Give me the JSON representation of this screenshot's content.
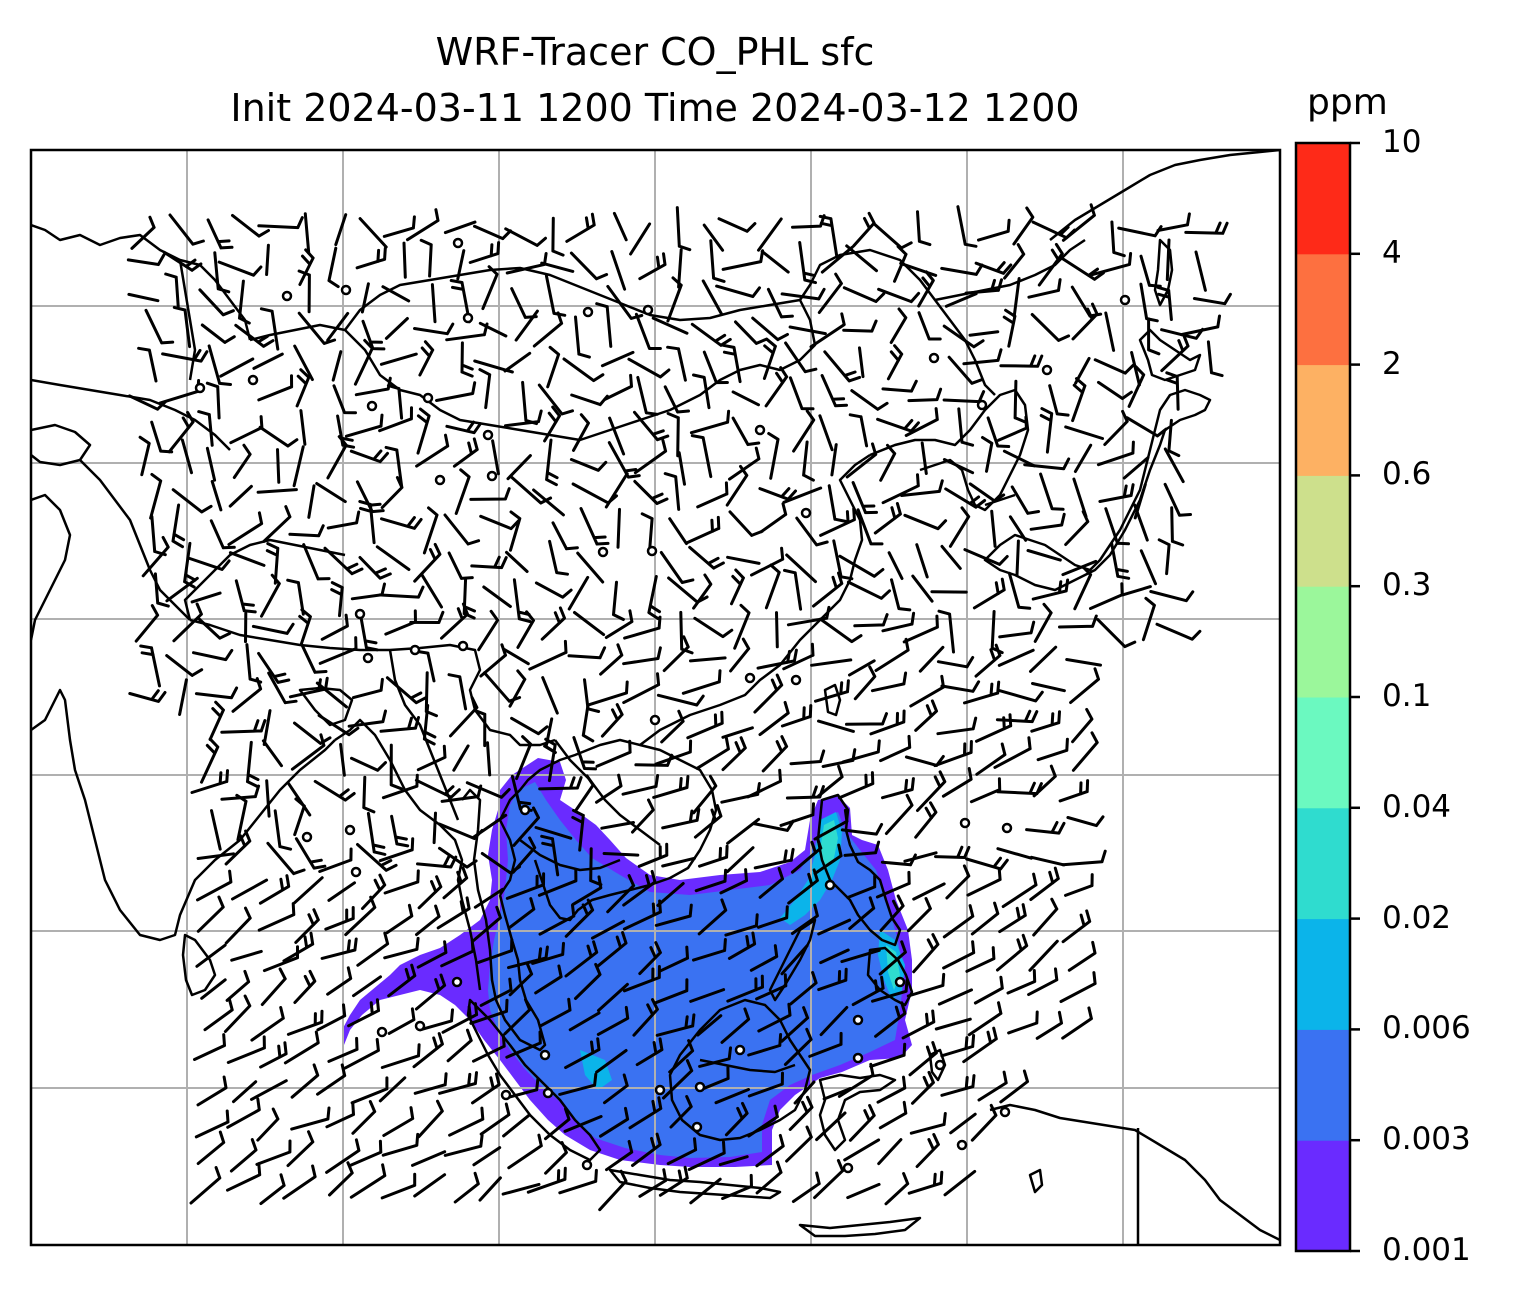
{
  "figure": {
    "title_line1": "WRF-Tracer CO_PHL sfc",
    "title_line2": "Init 2024-03-11 1200 Time 2024-03-12 1200"
  },
  "colorbar": {
    "unit": "ppm",
    "levels": [
      {
        "label": "0.001",
        "color": "#6a2bff"
      },
      {
        "label": "0.003",
        "color": "#3a72f2"
      },
      {
        "label": "0.006",
        "color": "#0bb4ea"
      },
      {
        "label": "0.02",
        "color": "#2fdccf"
      },
      {
        "label": "0.04",
        "color": "#6bf9c0"
      },
      {
        "label": "0.1",
        "color": "#9bf79b"
      },
      {
        "label": "0.3",
        "color": "#cde08c"
      },
      {
        "label": "0.6",
        "color": "#fdb163"
      },
      {
        "label": "2",
        "color": "#fd7040"
      },
      {
        "label": "4",
        "color": "#fe2a18"
      },
      {
        "label": "10",
        "color": null
      }
    ]
  },
  "map": {
    "grid": true,
    "coastline_color": "#000000",
    "grid_color": "#b0b0b0",
    "layers": [
      "coastlines",
      "country-borders",
      "wind-barbs",
      "calm-wind-circles",
      "tracer-concentration"
    ]
  }
}
